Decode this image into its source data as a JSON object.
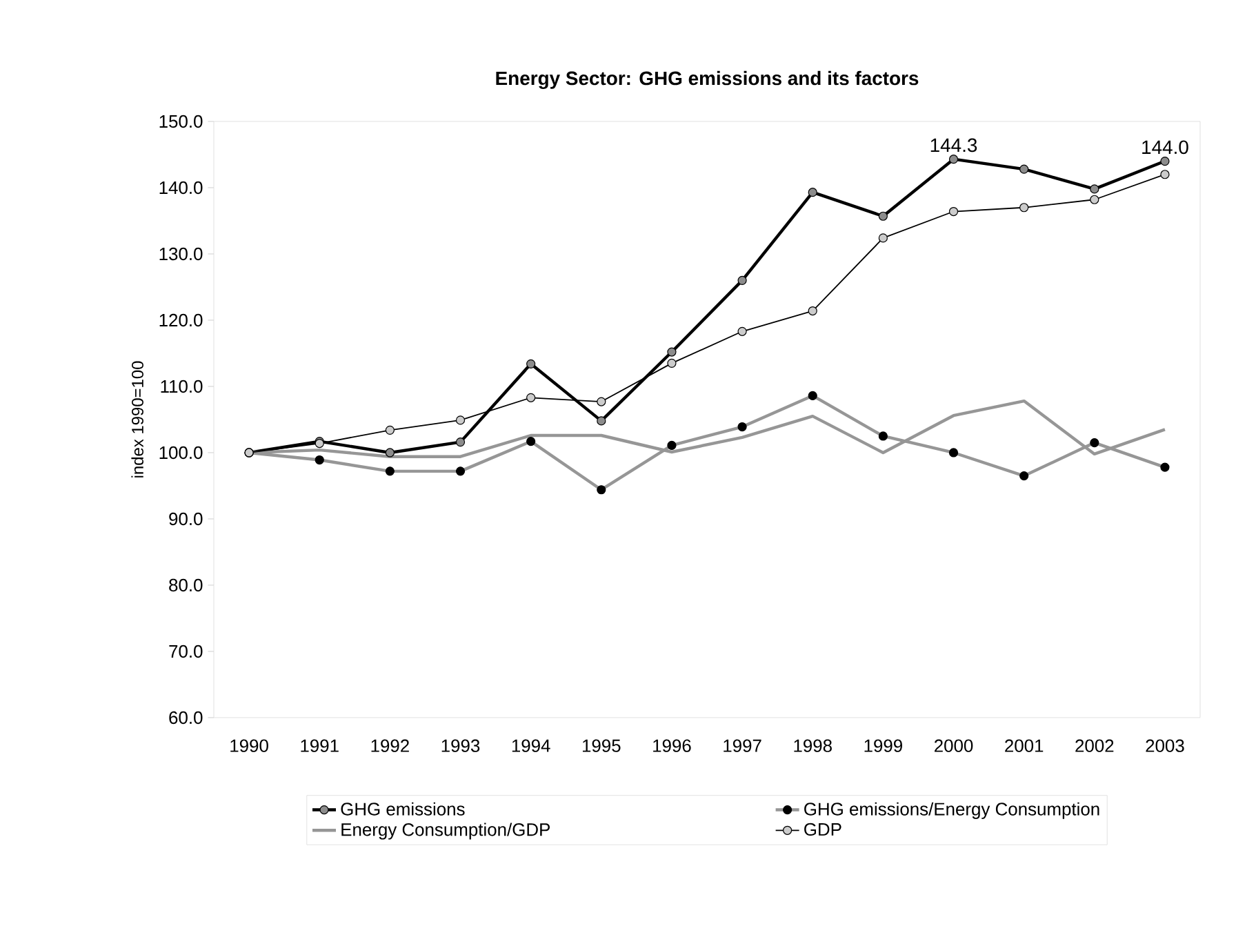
{
  "chart_data": {
    "type": "line",
    "title": "Energy Sector: GHG emissions and its factors",
    "ylabel": "index 1990=100",
    "categories": [
      "1990",
      "1991",
      "1992",
      "1993",
      "1994",
      "1995",
      "1996",
      "1997",
      "1998",
      "1999",
      "2000",
      "2001",
      "2002",
      "2003"
    ],
    "series": [
      {
        "name": "GHG emissions",
        "color": "#000000",
        "marker": "circle",
        "values": [
          100.0,
          101.7,
          100.0,
          101.6,
          113.4,
          104.8,
          115.2,
          126.0,
          139.3,
          135.7,
          144.3,
          142.8,
          139.8,
          144.0
        ]
      },
      {
        "name": "GHG emissions/Energy Consumption",
        "color": "#969696",
        "marker": "circle",
        "values": [
          100.0,
          98.9,
          97.2,
          97.2,
          101.7,
          94.4,
          101.1,
          103.9,
          108.6,
          102.5,
          100.0,
          96.5,
          101.5,
          97.8
        ]
      },
      {
        "name": "Energy Consumption/GDP",
        "color": "#969696",
        "marker": "none",
        "values": [
          100.0,
          100.4,
          99.4,
          99.4,
          102.6,
          102.6,
          100.1,
          102.3,
          105.5,
          100.0,
          105.6,
          107.8,
          99.8,
          103.5
        ]
      },
      {
        "name": "GDP",
        "color": "#000000",
        "marker": "circle",
        "values": [
          100.0,
          101.4,
          103.4,
          104.9,
          108.3,
          107.7,
          113.5,
          118.3,
          121.4,
          132.4,
          136.4,
          137.0,
          138.2,
          142.0
        ]
      }
    ],
    "annotations": [
      {
        "text": "144.3",
        "x": "2000",
        "y": 144.3
      },
      {
        "text": "144.0",
        "x": "2003",
        "y": 144.0
      }
    ],
    "ylim": [
      60,
      150
    ],
    "yticks": [
      {
        "value": 60,
        "label": "60.0"
      },
      {
        "value": 70,
        "label": "70.0"
      },
      {
        "value": 80,
        "label": "80.0"
      },
      {
        "value": 90,
        "label": "90.0"
      },
      {
        "value": 100,
        "label": "100.0"
      },
      {
        "value": 110,
        "label": "110.0"
      },
      {
        "value": 120,
        "label": "120.0"
      },
      {
        "value": 130,
        "label": "130.0"
      },
      {
        "value": 140,
        "label": "140.0"
      },
      {
        "value": 150,
        "label": "150.0"
      }
    ],
    "grid": false,
    "legend": "bottom"
  }
}
